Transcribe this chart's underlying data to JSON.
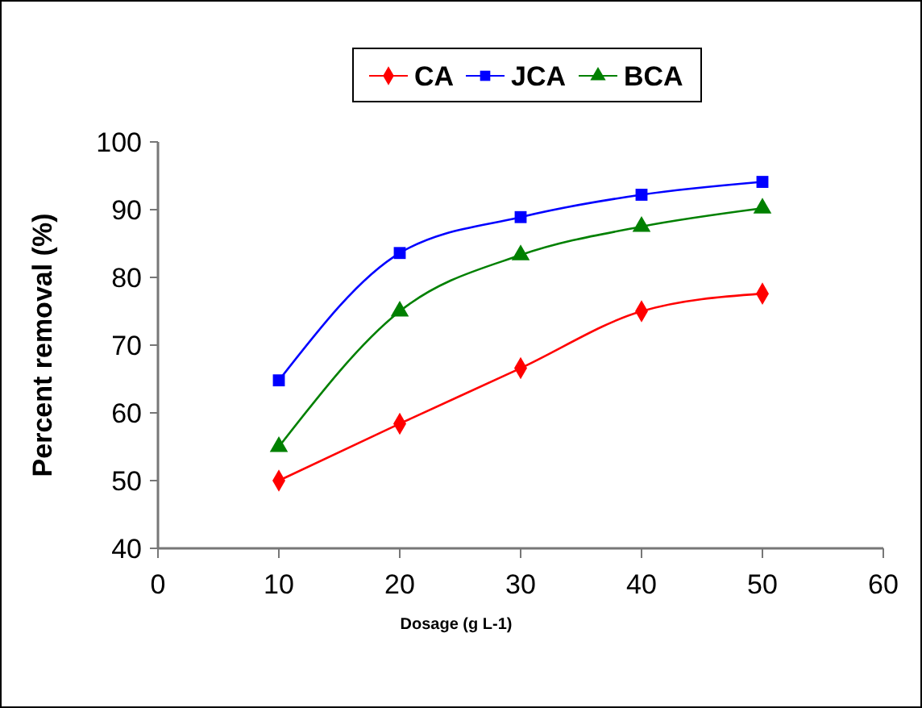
{
  "chart_data": {
    "type": "line",
    "xlabel": "Dosage (g L-1)",
    "ylabel": "Percent removal (%)",
    "x": [
      10,
      20,
      30,
      40,
      50
    ],
    "series": [
      {
        "name": "CA",
        "color": "#ff0000",
        "marker": "diamond",
        "values": [
          50,
          58.4,
          66.6,
          75,
          77.6
        ]
      },
      {
        "name": "JCA",
        "color": "#0000ff",
        "marker": "square",
        "values": [
          64.8,
          83.6,
          88.9,
          92.2,
          94.1
        ]
      },
      {
        "name": "BCA",
        "color": "#008000",
        "marker": "triangle",
        "values": [
          55,
          75,
          83.3,
          87.5,
          90.2
        ]
      }
    ],
    "xlim": [
      0,
      60
    ],
    "xticks": [
      0,
      10,
      20,
      30,
      40,
      50,
      60
    ],
    "ylim": [
      40,
      100
    ],
    "yticks": [
      40,
      50,
      60,
      70,
      80,
      90,
      100
    ],
    "grid": false,
    "legend": "top"
  }
}
